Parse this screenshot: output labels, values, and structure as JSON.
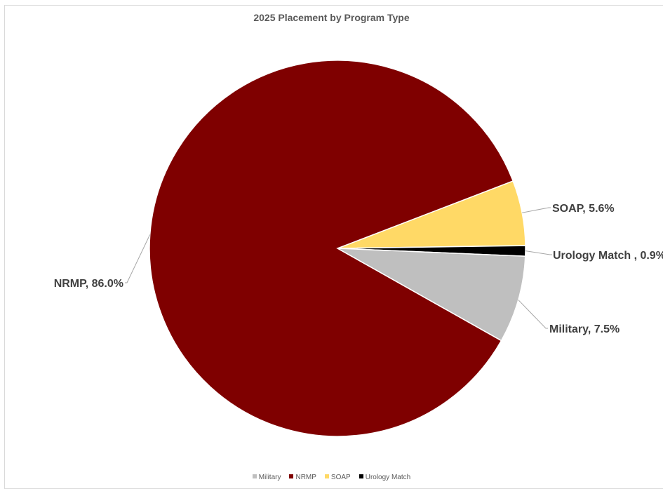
{
  "chart_data": {
    "type": "pie",
    "title": "2025 Placement by Program Type",
    "slices": [
      {
        "name": "SOAP",
        "value": 5.6,
        "label": "SOAP, 5.6%",
        "color": "#ffd966"
      },
      {
        "name": "Urology Match ",
        "value": 0.9,
        "label": "Urology Match , 0.9%",
        "color": "#000000"
      },
      {
        "name": "Military",
        "value": 7.5,
        "label": "Military, 7.5%",
        "color": "#bfbfbf"
      },
      {
        "name": "NRMP",
        "value": 86.0,
        "label": "NRMP, 86.0%",
        "color": "#7f0000"
      }
    ],
    "legend": {
      "position": "bottom",
      "items": [
        {
          "name": "Military",
          "color": "#bfbfbf"
        },
        {
          "name": "NRMP",
          "color": "#7f0000"
        },
        {
          "name": "SOAP",
          "color": "#ffd966"
        },
        {
          "name": "Urology Match",
          "color": "#000000"
        }
      ]
    }
  }
}
